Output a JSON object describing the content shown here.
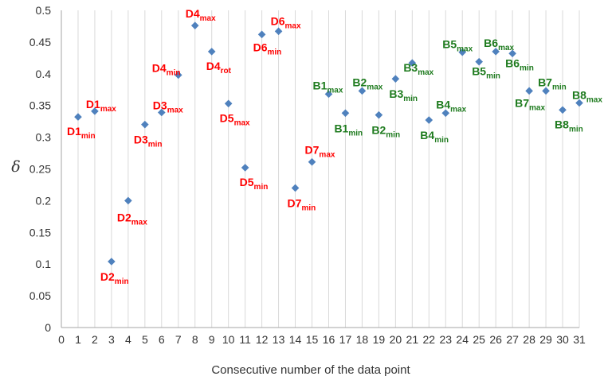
{
  "chart_data": {
    "type": "scatter",
    "title": "",
    "xlabel": "Consecutive number of the data point",
    "ylabel": "δ",
    "xlim": [
      0,
      31
    ],
    "ylim": [
      0,
      0.5
    ],
    "xticks": [
      "0",
      "1",
      "2",
      "3",
      "4",
      "5",
      "6",
      "7",
      "8",
      "9",
      "10",
      "11",
      "12",
      "13",
      "14",
      "15",
      "16",
      "17",
      "18",
      "19",
      "20",
      "21",
      "22",
      "23",
      "24",
      "25",
      "26",
      "27",
      "28",
      "29",
      "30",
      "31"
    ],
    "yticks": [
      "0",
      "0.05",
      "0.1",
      "0.15",
      "0.2",
      "0.25",
      "0.3",
      "0.35",
      "0.4",
      "0.45",
      "0.5"
    ],
    "grid": "vertical",
    "legend": "none",
    "marker_color": "#4F81BD",
    "label_colors": {
      "D": "#FF0000",
      "B": "#1E7B1E"
    },
    "points": [
      {
        "x": 1,
        "y": 0.332,
        "label_main": "D1",
        "label_sub": "min",
        "group": "D"
      },
      {
        "x": 2,
        "y": 0.341,
        "label_main": "D1",
        "label_sub": "max",
        "group": "D"
      },
      {
        "x": 3,
        "y": 0.104,
        "label_main": "D2",
        "label_sub": "min",
        "group": "D"
      },
      {
        "x": 4,
        "y": 0.2,
        "label_main": "D2",
        "label_sub": "max",
        "group": "D"
      },
      {
        "x": 5,
        "y": 0.32,
        "label_main": "D3",
        "label_sub": "min",
        "group": "D"
      },
      {
        "x": 6,
        "y": 0.339,
        "label_main": "D3",
        "label_sub": "max",
        "group": "D"
      },
      {
        "x": 7,
        "y": 0.398,
        "label_main": "D4",
        "label_sub": "min",
        "group": "D"
      },
      {
        "x": 8,
        "y": 0.476,
        "label_main": "D4",
        "label_sub": "max",
        "group": "D"
      },
      {
        "x": 9,
        "y": 0.435,
        "label_main": "D4",
        "label_sub": "rot",
        "group": "D"
      },
      {
        "x": 10,
        "y": 0.353,
        "label_main": "D5",
        "label_sub": "max",
        "group": "D"
      },
      {
        "x": 11,
        "y": 0.252,
        "label_main": "D5",
        "label_sub": "min",
        "group": "D"
      },
      {
        "x": 12,
        "y": 0.462,
        "label_main": "D6",
        "label_sub": "min",
        "group": "D"
      },
      {
        "x": 13,
        "y": 0.467,
        "label_main": "D6",
        "label_sub": "max",
        "group": "D"
      },
      {
        "x": 14,
        "y": 0.22,
        "label_main": "D7",
        "label_sub": "min",
        "group": "D"
      },
      {
        "x": 15,
        "y": 0.261,
        "label_main": "D7",
        "label_sub": "max",
        "group": "D"
      },
      {
        "x": 16,
        "y": 0.368,
        "label_main": "B1",
        "label_sub": "max",
        "group": "B"
      },
      {
        "x": 17,
        "y": 0.338,
        "label_main": "B1",
        "label_sub": "min",
        "group": "B"
      },
      {
        "x": 18,
        "y": 0.373,
        "label_main": "B2",
        "label_sub": "max",
        "group": "B"
      },
      {
        "x": 19,
        "y": 0.335,
        "label_main": "B2",
        "label_sub": "min",
        "group": "B"
      },
      {
        "x": 20,
        "y": 0.392,
        "label_main": "B3",
        "label_sub": "min",
        "group": "B"
      },
      {
        "x": 21,
        "y": 0.417,
        "label_main": "B3",
        "label_sub": "max",
        "group": "B"
      },
      {
        "x": 22,
        "y": 0.327,
        "label_main": "B4",
        "label_sub": "min",
        "group": "B"
      },
      {
        "x": 23,
        "y": 0.338,
        "label_main": "B4",
        "label_sub": "max",
        "group": "B"
      },
      {
        "x": 24,
        "y": 0.434,
        "label_main": "B5",
        "label_sub": "max",
        "group": "B"
      },
      {
        "x": 25,
        "y": 0.419,
        "label_main": "B5",
        "label_sub": "min",
        "group": "B"
      },
      {
        "x": 26,
        "y": 0.435,
        "label_main": "B6",
        "label_sub": "max",
        "group": "B"
      },
      {
        "x": 27,
        "y": 0.432,
        "label_main": "B6",
        "label_sub": "min",
        "group": "B"
      },
      {
        "x": 28,
        "y": 0.373,
        "label_main": "B7",
        "label_sub": "max",
        "group": "B"
      },
      {
        "x": 29,
        "y": 0.373,
        "label_main": "B7",
        "label_sub": "min",
        "group": "B"
      },
      {
        "x": 30,
        "y": 0.343,
        "label_main": "B8",
        "label_sub": "min",
        "group": "B"
      },
      {
        "x": 31,
        "y": 0.354,
        "label_main": "B8",
        "label_sub": "max",
        "group": "B"
      }
    ]
  }
}
